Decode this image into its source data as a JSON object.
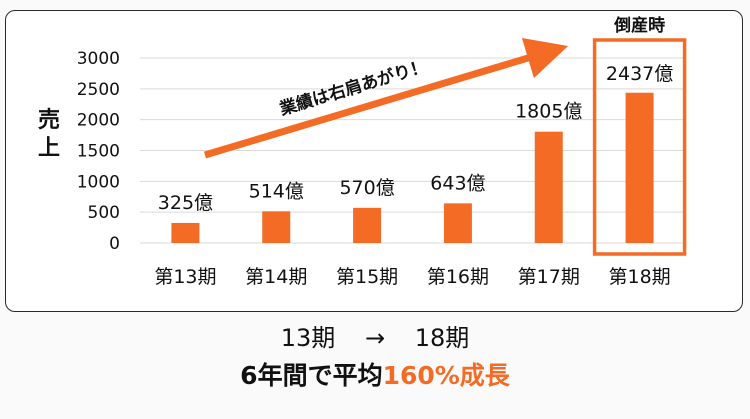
{
  "chart_data": {
    "type": "bar",
    "ylabel_chars": [
      "売",
      "上"
    ],
    "ylim": [
      0,
      3000
    ],
    "yticks": [
      0,
      500,
      1000,
      1500,
      2000,
      2500,
      3000
    ],
    "ytick_labels": [
      "0",
      "500",
      "1000",
      "1500",
      "2000",
      "2500",
      "3000"
    ],
    "categories": [
      "第13期",
      "第14期",
      "第15期",
      "第16期",
      "第17期",
      "第18期"
    ],
    "values": [
      325,
      514,
      570,
      643,
      1805,
      2437
    ],
    "value_labels": [
      "325億",
      "514億",
      "570億",
      "643億",
      "1805億",
      "2437億"
    ],
    "grid": true,
    "bar_color": "#f46b25",
    "annotation_trend": "業績は右肩あがり！",
    "annotation_highlight": "倒産時",
    "highlight_index": 5
  },
  "captions": {
    "period_from": "13期",
    "arrow": "→",
    "period_to": "18期",
    "growth_prefix": "6年間で平均",
    "growth_value": "160%成長"
  },
  "colors": {
    "accent": "#f46b25",
    "grid": "#d9d9d9",
    "frame": "#2b2b2b"
  }
}
